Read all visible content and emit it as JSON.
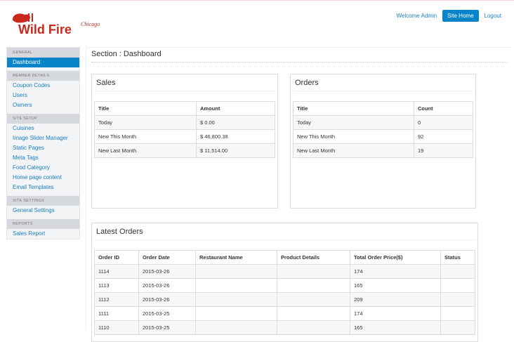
{
  "logo": {
    "text": "Wild Fire",
    "sub": "Chicago",
    "color": "#c8281e"
  },
  "topnav": {
    "welcome": "Welcome Admin",
    "site_home": "Site Home",
    "logout": "Logout"
  },
  "sidebar": [
    {
      "header": "GENERAL",
      "items": [
        "Dashboard"
      ],
      "active": "Dashboard"
    },
    {
      "header": "MEMBER DETAILS",
      "items": [
        "Coupon Codes",
        "Users",
        "Owners"
      ]
    },
    {
      "header": "SITE SETUP",
      "items": [
        "Cuisines",
        "Image Slider Manager",
        "Static Pages",
        "Meta Tags",
        "Food Category",
        "Home page content",
        "Email Templates"
      ]
    },
    {
      "header": "SITE SETTINGS",
      "items": [
        "General Settings"
      ]
    },
    {
      "header": "REPORTS",
      "items": [
        "Sales Report"
      ]
    }
  ],
  "section_title": "Section : Dashboard",
  "sales": {
    "title": "Sales",
    "columns": [
      "Title",
      "Amount"
    ],
    "rows": [
      [
        "Today",
        "$ 0.00"
      ],
      [
        "New This Month",
        "$ 46,800.38"
      ],
      [
        "New Last Month",
        "$ 11,514.00"
      ]
    ]
  },
  "orders": {
    "title": "Orders",
    "columns": [
      "Title",
      "Count"
    ],
    "rows": [
      [
        "Today",
        "0"
      ],
      [
        "New This Month",
        "92"
      ],
      [
        "New Last Month",
        "19"
      ]
    ]
  },
  "latest": {
    "title": "Latest Orders",
    "columns": [
      "Order ID",
      "Order Date",
      "Restaurant Name",
      "Product Details",
      "Total Order Price($)",
      "Status"
    ],
    "rows": [
      [
        "1114",
        "2015-03-26",
        "",
        "",
        "174",
        ""
      ],
      [
        "1113",
        "2015-03-26",
        "",
        "",
        "165",
        ""
      ],
      [
        "1112",
        "2015-03-26",
        "",
        "",
        "209",
        ""
      ],
      [
        "1111",
        "2015-03-25",
        "",
        "",
        "174",
        ""
      ],
      [
        "1110",
        "2015-03-25",
        "",
        "",
        "165",
        ""
      ]
    ]
  },
  "colors": {
    "accent": "#0a84c8",
    "link": "#1a7fc4"
  }
}
